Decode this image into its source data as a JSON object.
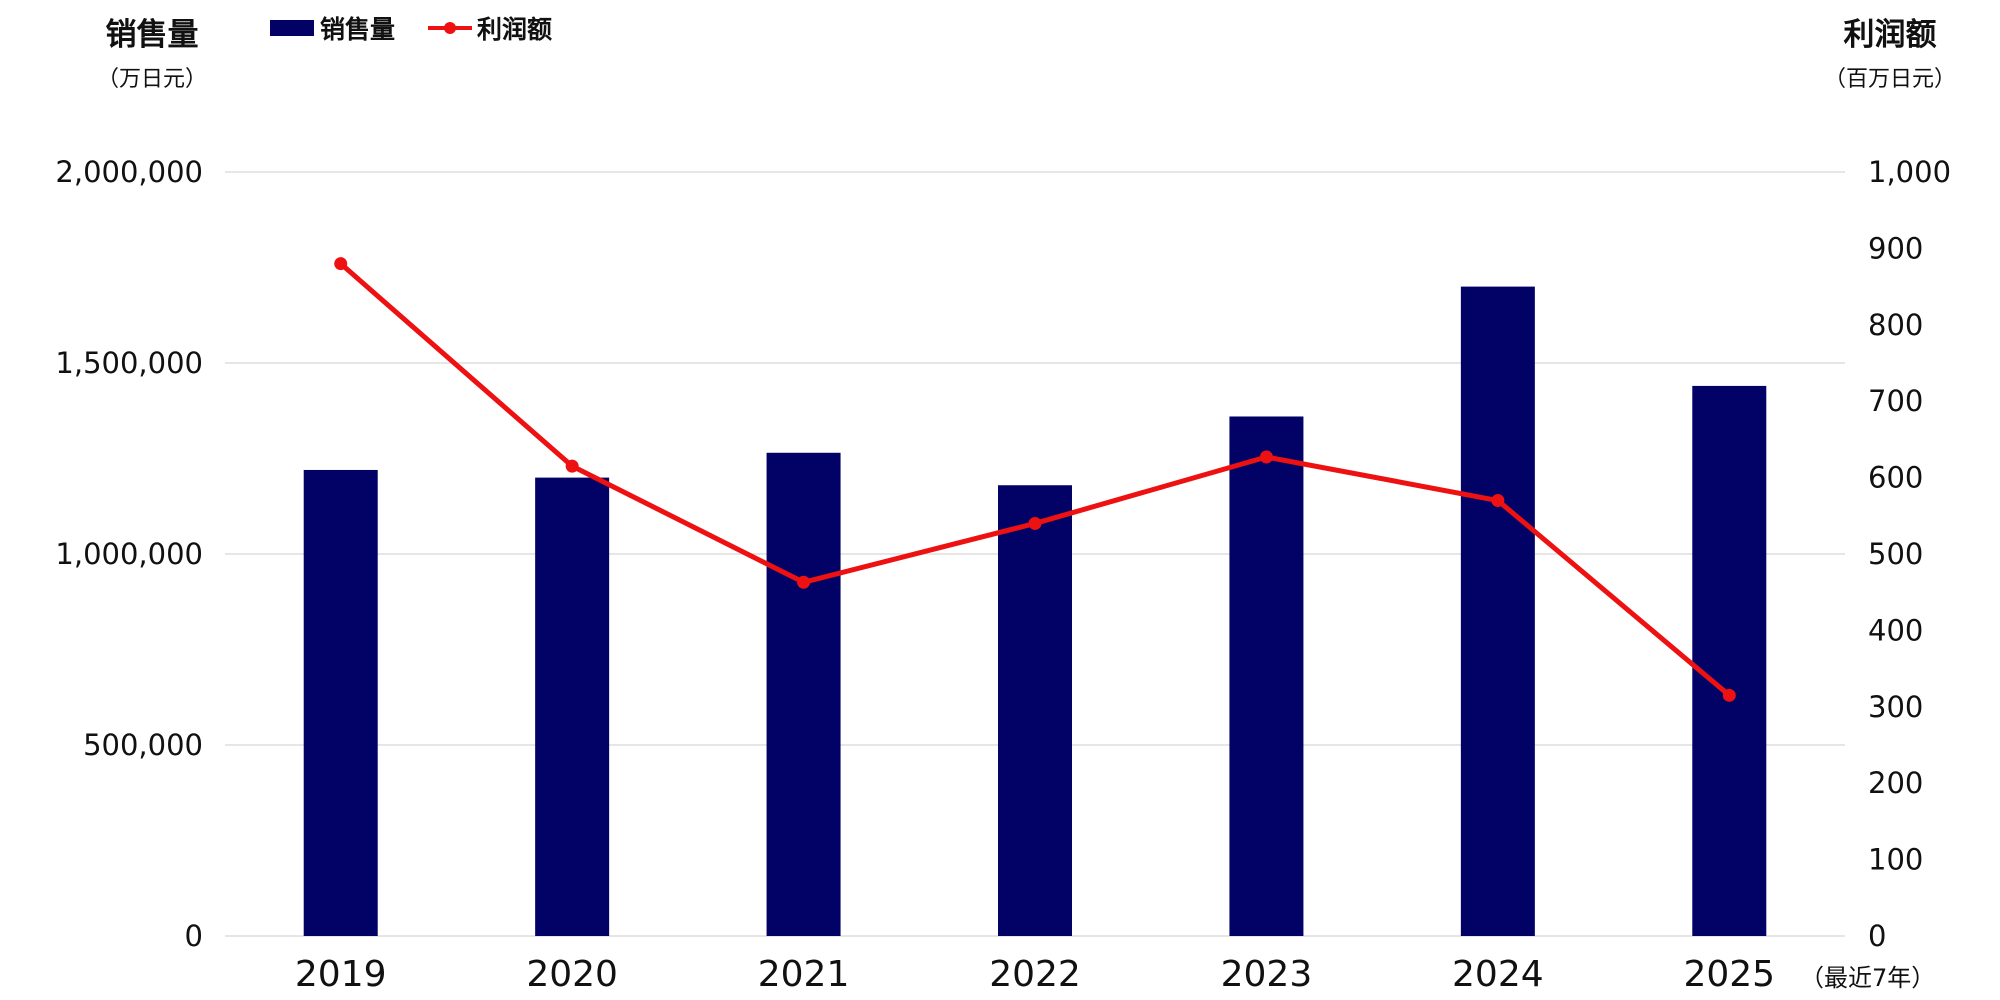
{
  "chart_data": {
    "type": "bar+line",
    "categories": [
      "2019",
      "2020",
      "2021",
      "2022",
      "2023",
      "2024",
      "2025"
    ],
    "series": [
      {
        "name": "销售量",
        "type": "bar",
        "axis": "left",
        "color": "#020266",
        "values": [
          1220000,
          1200000,
          1265000,
          1180000,
          1360000,
          1700000,
          1440000
        ]
      },
      {
        "name": "利润额",
        "type": "line",
        "axis": "right",
        "color": "#ee1111",
        "values": [
          880,
          615,
          463,
          540,
          627,
          570,
          315
        ]
      }
    ],
    "left_axis": {
      "title": "销售量",
      "unit": "（万日元）",
      "ylim": [
        0,
        2000000
      ],
      "ticks": [
        0,
        500000,
        1000000,
        1500000,
        2000000
      ],
      "tick_labels": [
        "0",
        "500,000",
        "1,000,000",
        "1,500,000",
        "2,000,000"
      ]
    },
    "right_axis": {
      "title": "利润额",
      "unit": "（百万日元）",
      "ylim": [
        0,
        1000
      ],
      "ticks": [
        0,
        100,
        200,
        300,
        400,
        500,
        600,
        700,
        800,
        900,
        1000
      ],
      "tick_labels": [
        "0",
        "100",
        "200",
        "300",
        "400",
        "500",
        "600",
        "700",
        "800",
        "900",
        "1,000"
      ]
    },
    "x_note": "（最近7年）",
    "legend": {
      "placement": "top-left",
      "entries": [
        "销售量",
        "利润额"
      ]
    },
    "grid": true,
    "gridline_color": "#dddddd"
  }
}
